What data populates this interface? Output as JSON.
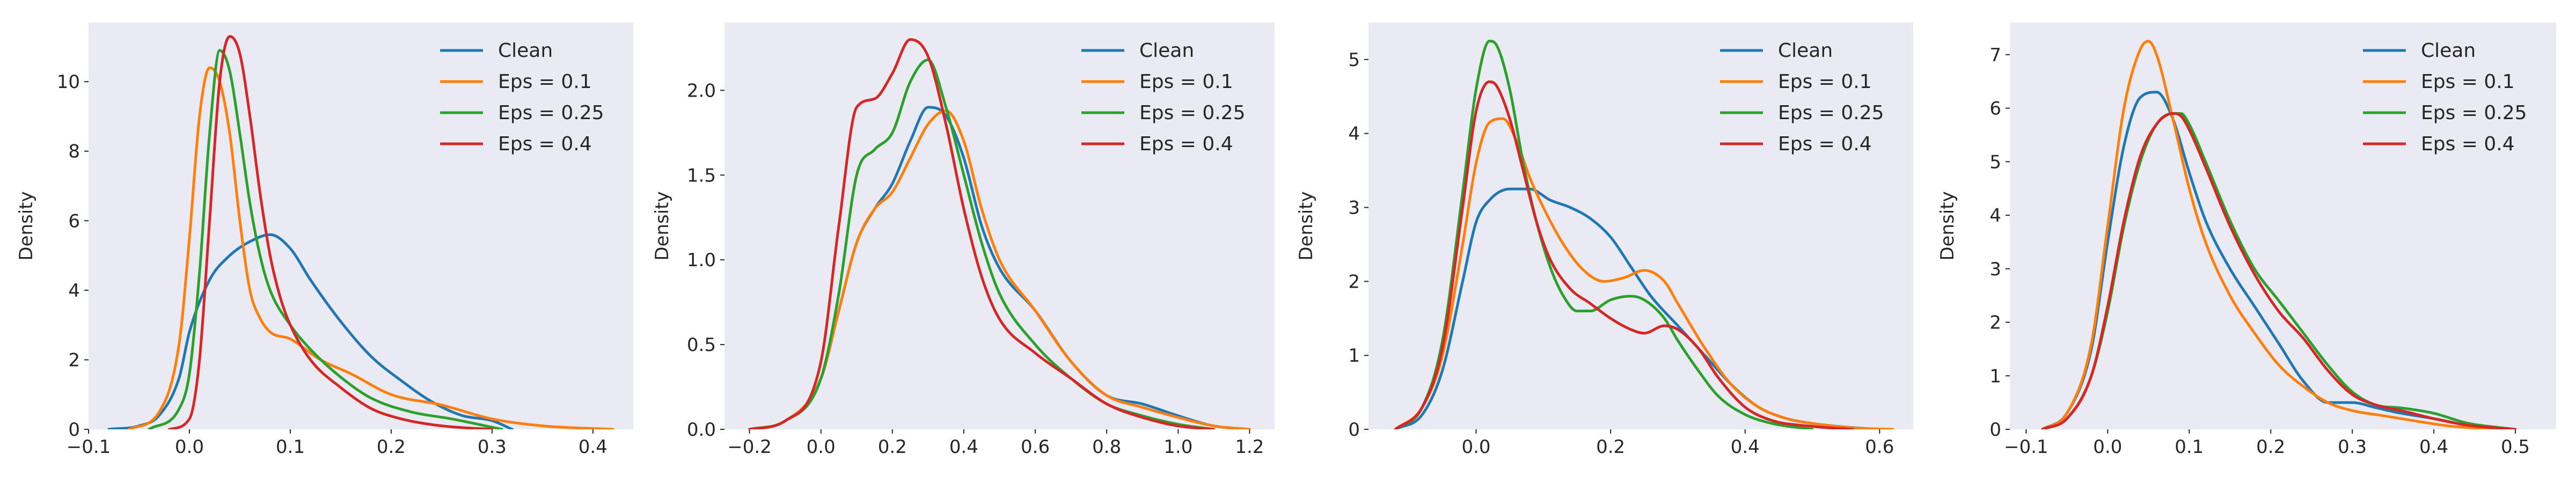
{
  "chart_data": [
    {
      "type": "line",
      "title": "",
      "xlabel": "",
      "ylabel": "Density",
      "xlim": [
        -0.1,
        0.44
      ],
      "ylim": [
        0,
        11.7
      ],
      "xticks": [
        "−0.1",
        "0.0",
        "0.1",
        "0.2",
        "0.3",
        "0.4"
      ],
      "xtick_values": [
        -0.1,
        0.0,
        0.1,
        0.2,
        0.3,
        0.4
      ],
      "yticks": [
        "0",
        "2",
        "4",
        "6",
        "8",
        "10"
      ],
      "ytick_values": [
        0,
        2,
        4,
        6,
        8,
        10
      ],
      "grid": false,
      "legend_position": "top-right",
      "series": [
        {
          "name": "Clean",
          "color": "#1f77b4",
          "x": [
            -0.08,
            -0.05,
            -0.03,
            -0.01,
            0.0,
            0.02,
            0.04,
            0.06,
            0.08,
            0.1,
            0.12,
            0.15,
            0.18,
            0.21,
            0.24,
            0.27,
            0.3,
            0.32
          ],
          "y": [
            0.0,
            0.1,
            0.4,
            1.5,
            2.8,
            4.3,
            5.0,
            5.4,
            5.6,
            5.2,
            4.3,
            3.1,
            2.1,
            1.4,
            0.8,
            0.4,
            0.25,
            0.0
          ]
        },
        {
          "name": "Eps = 0.1",
          "color": "#ff7f0e",
          "x": [
            -0.06,
            -0.03,
            -0.01,
            0.0,
            0.01,
            0.02,
            0.03,
            0.04,
            0.05,
            0.06,
            0.07,
            0.08,
            0.1,
            0.13,
            0.16,
            0.2,
            0.25,
            0.3,
            0.35,
            0.42
          ],
          "y": [
            0.0,
            0.5,
            2.5,
            5.5,
            9.0,
            10.4,
            10.0,
            8.5,
            6.0,
            4.0,
            3.2,
            2.8,
            2.6,
            2.0,
            1.6,
            1.0,
            0.7,
            0.3,
            0.1,
            0.0
          ]
        },
        {
          "name": "Eps = 0.25",
          "color": "#2ca02c",
          "x": [
            -0.04,
            -0.01,
            0.0,
            0.01,
            0.02,
            0.03,
            0.04,
            0.05,
            0.06,
            0.07,
            0.08,
            0.1,
            0.12,
            0.15,
            0.18,
            0.22,
            0.26,
            0.31
          ],
          "y": [
            0.0,
            0.6,
            1.6,
            4.5,
            8.5,
            10.9,
            10.3,
            8.5,
            6.5,
            5.0,
            4.0,
            3.0,
            2.3,
            1.5,
            0.9,
            0.5,
            0.3,
            0.0
          ]
        },
        {
          "name": "Eps = 0.4",
          "color": "#d62728",
          "x": [
            -0.02,
            0.0,
            0.01,
            0.02,
            0.03,
            0.04,
            0.05,
            0.06,
            0.07,
            0.08,
            0.09,
            0.1,
            0.12,
            0.15,
            0.18,
            0.21,
            0.25,
            0.3
          ],
          "y": [
            0.0,
            0.3,
            2.0,
            6.0,
            10.0,
            11.3,
            10.8,
            9.0,
            6.8,
            5.0,
            3.8,
            3.0,
            2.0,
            1.2,
            0.6,
            0.3,
            0.1,
            0.0
          ]
        }
      ]
    },
    {
      "type": "line",
      "title": "",
      "xlabel": "",
      "ylabel": "Density",
      "xlim": [
        -0.27,
        1.27
      ],
      "ylim": [
        0,
        2.4
      ],
      "xticks": [
        "−0.2",
        "0.0",
        "0.2",
        "0.4",
        "0.6",
        "0.8",
        "1.0",
        "1.2"
      ],
      "xtick_values": [
        -0.2,
        0.0,
        0.2,
        0.4,
        0.6,
        0.8,
        1.0,
        1.2
      ],
      "yticks": [
        "0.0",
        "0.5",
        "1.0",
        "1.5",
        "2.0"
      ],
      "ytick_values": [
        0.0,
        0.5,
        1.0,
        1.5,
        2.0
      ],
      "grid": false,
      "legend_position": "top-right",
      "series": [
        {
          "name": "Clean",
          "color": "#1f77b4",
          "x": [
            -0.2,
            -0.1,
            0.0,
            0.05,
            0.1,
            0.15,
            0.2,
            0.25,
            0.3,
            0.35,
            0.4,
            0.45,
            0.5,
            0.6,
            0.7,
            0.8,
            0.9,
            1.0,
            1.1,
            1.2
          ],
          "y": [
            0.0,
            0.05,
            0.3,
            0.7,
            1.1,
            1.3,
            1.45,
            1.7,
            1.9,
            1.85,
            1.6,
            1.2,
            0.95,
            0.7,
            0.4,
            0.2,
            0.15,
            0.08,
            0.02,
            0.0
          ]
        },
        {
          "name": "Eps = 0.1",
          "color": "#ff7f0e",
          "x": [
            -0.2,
            -0.1,
            0.0,
            0.05,
            0.1,
            0.15,
            0.2,
            0.25,
            0.3,
            0.35,
            0.4,
            0.45,
            0.5,
            0.6,
            0.7,
            0.8,
            0.9,
            1.0,
            1.1,
            1.2
          ],
          "y": [
            0.0,
            0.05,
            0.3,
            0.7,
            1.1,
            1.3,
            1.4,
            1.6,
            1.8,
            1.88,
            1.7,
            1.3,
            1.0,
            0.7,
            0.4,
            0.2,
            0.13,
            0.07,
            0.02,
            0.0
          ]
        },
        {
          "name": "Eps = 0.25",
          "color": "#2ca02c",
          "x": [
            -0.2,
            -0.1,
            0.0,
            0.05,
            0.1,
            0.15,
            0.2,
            0.25,
            0.3,
            0.35,
            0.4,
            0.45,
            0.5,
            0.6,
            0.7,
            0.8,
            0.9,
            1.0,
            1.1
          ],
          "y": [
            0.0,
            0.05,
            0.3,
            0.8,
            1.5,
            1.65,
            1.75,
            2.05,
            2.18,
            1.9,
            1.5,
            1.1,
            0.8,
            0.5,
            0.3,
            0.15,
            0.08,
            0.03,
            0.0
          ]
        },
        {
          "name": "Eps = 0.4",
          "color": "#d62728",
          "x": [
            -0.2,
            -0.1,
            0.0,
            0.05,
            0.1,
            0.15,
            0.2,
            0.25,
            0.3,
            0.35,
            0.4,
            0.45,
            0.5,
            0.6,
            0.7,
            0.8,
            0.9,
            1.0,
            1.1
          ],
          "y": [
            0.0,
            0.05,
            0.4,
            1.2,
            1.9,
            1.95,
            2.1,
            2.3,
            2.2,
            1.8,
            1.3,
            0.9,
            0.65,
            0.45,
            0.3,
            0.15,
            0.07,
            0.02,
            0.0
          ]
        }
      ]
    },
    {
      "type": "line",
      "title": "",
      "xlabel": "",
      "ylabel": "Density",
      "xlim": [
        -0.16,
        0.65
      ],
      "ylim": [
        0,
        5.5
      ],
      "xticks": [
        "0.0",
        "0.2",
        "0.4",
        "0.6"
      ],
      "xtick_values": [
        0.0,
        0.2,
        0.4,
        0.6
      ],
      "yticks": [
        "0",
        "1",
        "2",
        "3",
        "4",
        "5"
      ],
      "ytick_values": [
        0,
        1,
        2,
        3,
        4,
        5
      ],
      "grid": false,
      "legend_position": "top-right",
      "series": [
        {
          "name": "Clean",
          "color": "#1f77b4",
          "x": [
            -0.12,
            -0.08,
            -0.05,
            -0.02,
            0.0,
            0.02,
            0.05,
            0.08,
            0.11,
            0.14,
            0.17,
            0.2,
            0.23,
            0.26,
            0.3,
            0.34,
            0.38,
            0.42,
            0.46,
            0.5,
            0.55,
            0.6
          ],
          "y": [
            0.0,
            0.2,
            0.8,
            2.0,
            2.8,
            3.1,
            3.25,
            3.25,
            3.1,
            3.0,
            2.85,
            2.6,
            2.2,
            1.8,
            1.4,
            1.0,
            0.6,
            0.3,
            0.15,
            0.08,
            0.03,
            0.0
          ]
        },
        {
          "name": "Eps = 0.1",
          "color": "#ff7f0e",
          "x": [
            -0.12,
            -0.08,
            -0.05,
            -0.02,
            0.0,
            0.02,
            0.04,
            0.06,
            0.08,
            0.1,
            0.13,
            0.16,
            0.19,
            0.22,
            0.25,
            0.28,
            0.3,
            0.34,
            0.38,
            0.42,
            0.46,
            0.5,
            0.56,
            0.62
          ],
          "y": [
            0.0,
            0.3,
            1.0,
            2.5,
            3.6,
            4.15,
            4.2,
            3.9,
            3.4,
            3.0,
            2.5,
            2.15,
            2.0,
            2.05,
            2.15,
            2.0,
            1.7,
            1.1,
            0.6,
            0.3,
            0.15,
            0.08,
            0.02,
            0.0
          ]
        },
        {
          "name": "Eps = 0.25",
          "color": "#2ca02c",
          "x": [
            -0.12,
            -0.08,
            -0.05,
            -0.02,
            0.0,
            0.02,
            0.03,
            0.05,
            0.07,
            0.09,
            0.11,
            0.13,
            0.15,
            0.17,
            0.2,
            0.23,
            0.25,
            0.28,
            0.3,
            0.33,
            0.36,
            0.4,
            0.44,
            0.5
          ],
          "y": [
            0.0,
            0.3,
            1.2,
            3.2,
            4.6,
            5.25,
            5.2,
            4.6,
            3.6,
            2.8,
            2.2,
            1.8,
            1.6,
            1.6,
            1.75,
            1.8,
            1.75,
            1.5,
            1.2,
            0.8,
            0.45,
            0.2,
            0.08,
            0.0
          ]
        },
        {
          "name": "Eps = 0.4",
          "color": "#d62728",
          "x": [
            -0.12,
            -0.08,
            -0.05,
            -0.02,
            0.0,
            0.02,
            0.03,
            0.05,
            0.07,
            0.09,
            0.11,
            0.14,
            0.17,
            0.2,
            0.23,
            0.25,
            0.28,
            0.3,
            0.33,
            0.36,
            0.4,
            0.44,
            0.5,
            0.56
          ],
          "y": [
            0.0,
            0.3,
            1.1,
            3.0,
            4.3,
            4.7,
            4.65,
            4.2,
            3.5,
            2.8,
            2.3,
            1.9,
            1.7,
            1.5,
            1.35,
            1.3,
            1.4,
            1.35,
            1.1,
            0.7,
            0.3,
            0.12,
            0.04,
            0.0
          ]
        }
      ]
    },
    {
      "type": "line",
      "title": "",
      "xlabel": "",
      "ylabel": "Density",
      "xlim": [
        -0.12,
        0.55
      ],
      "ylim": [
        0,
        7.6
      ],
      "xticks": [
        "−0.1",
        "0.0",
        "0.1",
        "0.2",
        "0.3",
        "0.4",
        "0.5"
      ],
      "xtick_values": [
        -0.1,
        0.0,
        0.1,
        0.2,
        0.3,
        0.4,
        0.5
      ],
      "yticks": [
        "0",
        "1",
        "2",
        "3",
        "4",
        "5",
        "6",
        "7"
      ],
      "ytick_values": [
        0,
        1,
        2,
        3,
        4,
        5,
        6,
        7
      ],
      "grid": false,
      "legend_position": "top-right",
      "series": [
        {
          "name": "Clean",
          "color": "#1f77b4",
          "x": [
            -0.08,
            -0.05,
            -0.02,
            0.0,
            0.02,
            0.04,
            0.06,
            0.08,
            0.1,
            0.12,
            0.15,
            0.18,
            0.21,
            0.24,
            0.27,
            0.3,
            0.33,
            0.36,
            0.4,
            0.44,
            0.48
          ],
          "y": [
            0.0,
            0.3,
            1.5,
            3.5,
            5.3,
            6.2,
            6.3,
            5.8,
            4.8,
            3.9,
            3.0,
            2.3,
            1.6,
            0.9,
            0.5,
            0.5,
            0.4,
            0.3,
            0.2,
            0.08,
            0.0
          ]
        },
        {
          "name": "Eps = 0.1",
          "color": "#ff7f0e",
          "x": [
            -0.08,
            -0.05,
            -0.02,
            0.0,
            0.02,
            0.04,
            0.05,
            0.06,
            0.08,
            0.1,
            0.12,
            0.15,
            0.18,
            0.21,
            0.24,
            0.27,
            0.3,
            0.34,
            0.38,
            0.42,
            0.48
          ],
          "y": [
            0.0,
            0.3,
            1.6,
            3.8,
            6.0,
            7.1,
            7.25,
            7.0,
            5.8,
            4.5,
            3.5,
            2.5,
            1.8,
            1.2,
            0.8,
            0.5,
            0.35,
            0.25,
            0.15,
            0.06,
            0.0
          ]
        },
        {
          "name": "Eps = 0.25",
          "color": "#2ca02c",
          "x": [
            -0.08,
            -0.05,
            -0.02,
            0.0,
            0.02,
            0.04,
            0.06,
            0.08,
            0.09,
            0.1,
            0.12,
            0.15,
            0.18,
            0.21,
            0.24,
            0.27,
            0.3,
            0.33,
            0.36,
            0.4,
            0.44,
            0.5
          ],
          "y": [
            0.0,
            0.2,
            1.0,
            2.2,
            3.8,
            5.0,
            5.7,
            5.9,
            5.9,
            5.7,
            5.0,
            3.9,
            3.0,
            2.4,
            1.8,
            1.2,
            0.7,
            0.45,
            0.4,
            0.3,
            0.12,
            0.0
          ]
        },
        {
          "name": "Eps = 0.4",
          "color": "#d62728",
          "x": [
            -0.08,
            -0.05,
            -0.02,
            0.0,
            0.02,
            0.04,
            0.06,
            0.08,
            0.09,
            0.1,
            0.12,
            0.15,
            0.18,
            0.21,
            0.24,
            0.27,
            0.3,
            0.33,
            0.36,
            0.4,
            0.44,
            0.5
          ],
          "y": [
            0.0,
            0.2,
            1.0,
            2.3,
            3.9,
            5.1,
            5.7,
            5.9,
            5.85,
            5.6,
            4.9,
            3.8,
            2.9,
            2.2,
            1.7,
            1.1,
            0.65,
            0.45,
            0.35,
            0.2,
            0.08,
            0.0
          ]
        }
      ]
    }
  ]
}
